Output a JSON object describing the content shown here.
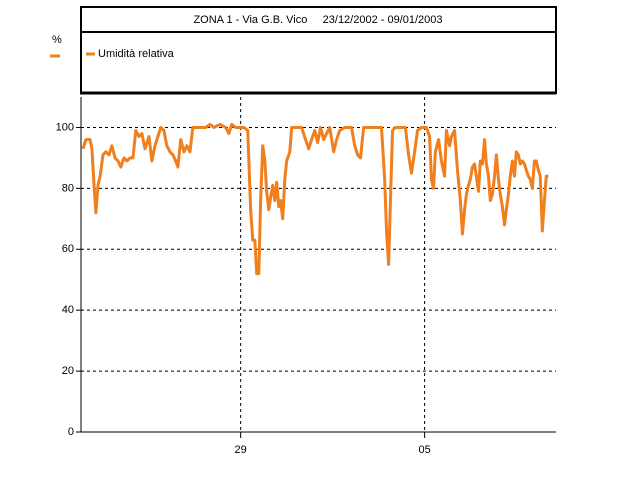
{
  "chart_data": {
    "type": "line",
    "title": "ZONA 1 - Via G.B. Vico     23/12/2002 - 09/01/2003",
    "y_label": "%",
    "x": [
      0,
      0.11,
      0.27,
      0.34,
      0.42,
      0.49,
      0.57,
      0.65,
      0.76,
      0.87,
      0.99,
      1.1,
      1.22,
      1.33,
      1.44,
      1.56,
      1.67,
      1.79,
      1.9,
      2.01,
      2.13,
      2.24,
      2.36,
      2.51,
      2.62,
      2.74,
      2.85,
      2.96,
      3.08,
      3.19,
      3.31,
      3.42,
      3.53,
      3.61,
      3.72,
      3.84,
      3.95,
      4.07,
      4.18,
      4.45,
      4.67,
      4.83,
      4.98,
      5.21,
      5.43,
      5.55,
      5.66,
      5.81,
      6.12,
      6.27,
      6.38,
      6.46,
      6.54,
      6.61,
      6.69,
      6.76,
      6.84,
      6.92,
      6.99,
      7.07,
      7.14,
      7.22,
      7.3,
      7.37,
      7.45,
      7.52,
      7.6,
      7.68,
      7.75,
      7.87,
      7.94,
      8.13,
      8.32,
      8.47,
      8.59,
      8.7,
      8.82,
      8.93,
      9.04,
      9.16,
      9.27,
      9.39,
      9.54,
      9.65,
      9.77,
      9.96,
      10.22,
      10.34,
      10.45,
      10.56,
      10.68,
      10.91,
      11.13,
      11.36,
      11.48,
      11.55,
      11.63,
      11.7,
      11.78,
      11.89,
      12.12,
      12.27,
      12.39,
      12.5,
      12.62,
      12.73,
      12.88,
      13.07,
      13.19,
      13.26,
      13.34,
      13.41,
      13.53,
      13.64,
      13.76,
      13.83,
      13.95,
      14.02,
      14.14,
      14.25,
      14.36,
      14.44,
      14.52,
      14.59,
      14.67,
      14.74,
      14.82,
      14.9,
      14.97,
      15.05,
      15.12,
      15.2,
      15.28,
      15.35,
      15.43,
      15.5,
      15.58,
      15.66,
      15.73,
      15.81,
      15.88,
      15.96,
      16.04,
      16.11,
      16.19,
      16.26,
      16.34,
      16.42,
      16.49,
      16.57,
      16.64,
      16.72,
      16.8,
      16.87,
      16.95,
      17.02,
      17.1,
      17.18,
      17.25,
      17.33,
      17.4,
      17.48,
      17.56,
      17.63,
      17.71
    ],
    "series": [
      {
        "name": "Umidità relativa",
        "color": "#f07f1d",
        "values": [
          93,
          96,
          96,
          93,
          81,
          72,
          81,
          84,
          91,
          92,
          91,
          94,
          90,
          89,
          87,
          90,
          89,
          90,
          90,
          99,
          97,
          98,
          93,
          97,
          89,
          94,
          97,
          100,
          99,
          94,
          92,
          91,
          89,
          87,
          96,
          92,
          94,
          92,
          100,
          100,
          100,
          101,
          100,
          101,
          100,
          98,
          101,
          100,
          100,
          99,
          73,
          63,
          63,
          52,
          52,
          76,
          94,
          89,
          79,
          73,
          77,
          81,
          76,
          82,
          74,
          76,
          70,
          83,
          89,
          92,
          100,
          100,
          100,
          96,
          93,
          96,
          99,
          95,
          100,
          96,
          98,
          100,
          92,
          96,
          99,
          100,
          100,
          94,
          91,
          90,
          100,
          100,
          100,
          100,
          83,
          66,
          55,
          76,
          99,
          100,
          100,
          100,
          91,
          85,
          92,
          99,
          100,
          100,
          97,
          83,
          80,
          92,
          96,
          89,
          84,
          99,
          94,
          97,
          99,
          86,
          76,
          65,
          73,
          78,
          81,
          83,
          87,
          88,
          84,
          79,
          89,
          88,
          96,
          88,
          84,
          76,
          78,
          84,
          91,
          83,
          78,
          74,
          68,
          73,
          78,
          84,
          89,
          84,
          92,
          91,
          88,
          89,
          88,
          86,
          84,
          83,
          80,
          89,
          89,
          86,
          84,
          66,
          76,
          84,
          84
        ]
      }
    ],
    "xlim": [
      0,
      18
    ],
    "xticks": [
      {
        "value": 6,
        "label": "29"
      },
      {
        "value": 13,
        "label": "05"
      }
    ],
    "ylim": [
      0,
      110
    ],
    "yticks": [
      0,
      20,
      40,
      60,
      80,
      100
    ],
    "grid": true
  }
}
